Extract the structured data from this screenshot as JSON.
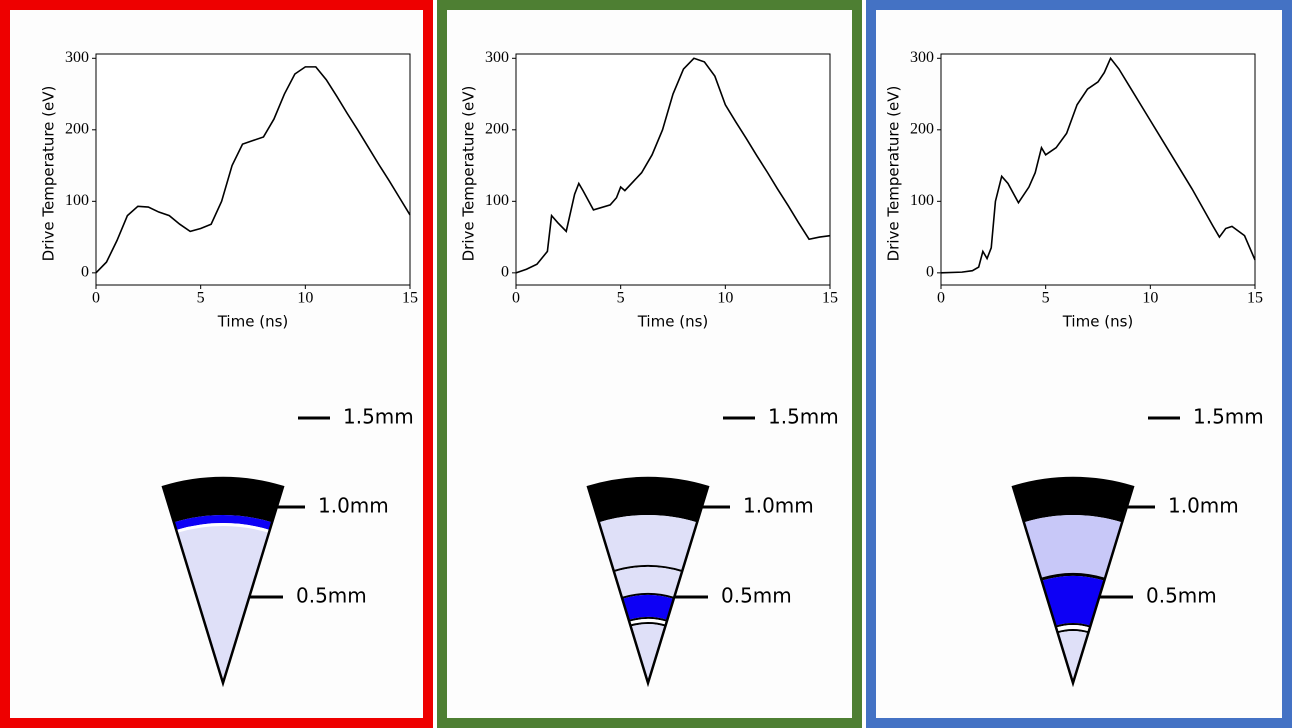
{
  "chart_data": [
    {
      "type": "line",
      "xlabel": "Time (ns)",
      "ylabel": "Drive Temperature (eV)",
      "color": "#000000",
      "x": [
        0,
        0.5,
        1,
        1.5,
        2,
        2.5,
        3,
        3.5,
        4,
        4.5,
        5,
        5.5,
        6,
        6.5,
        7,
        7.5,
        8,
        8.5,
        9,
        9.5,
        10,
        10.5,
        11,
        11.5,
        12,
        12.5,
        13,
        13.5,
        14,
        14.5,
        15
      ],
      "values": [
        0,
        15,
        45,
        80,
        93,
        92,
        85,
        80,
        68,
        58,
        62,
        68,
        100,
        150,
        180,
        185,
        190,
        215,
        250,
        278,
        288,
        288,
        270,
        247,
        223,
        200,
        176,
        152,
        129,
        105,
        81
      ],
      "xlim": [
        0,
        15
      ],
      "ylim": [
        -17,
        306
      ],
      "xticks": [
        0,
        5,
        10,
        15
      ],
      "yticks": [
        0,
        100,
        200,
        300
      ],
      "annotations": [
        "1.5mm",
        "1.0mm",
        "0.5mm"
      ]
    },
    {
      "type": "line",
      "xlabel": "Time (ns)",
      "ylabel": "Drive Temperature (eV)",
      "color": "#000000",
      "x": [
        0,
        0.5,
        1,
        1.5,
        1.7,
        2,
        2.4,
        2.8,
        3,
        3.2,
        3.7,
        4.5,
        4.8,
        5,
        5.2,
        6,
        6.5,
        7,
        7.5,
        8,
        8.5,
        9,
        9.5,
        10,
        10.5,
        11,
        11.5,
        12,
        12.5,
        13,
        13.5,
        14,
        14.5,
        15
      ],
      "values": [
        0,
        5,
        12,
        30,
        80,
        70,
        58,
        110,
        125,
        115,
        88,
        95,
        105,
        120,
        115,
        140,
        165,
        200,
        250,
        285,
        300,
        295,
        275,
        235,
        211,
        188,
        164,
        141,
        117,
        94,
        70,
        47,
        50,
        52
      ],
      "xlim": [
        0,
        15
      ],
      "ylim": [
        -17,
        306
      ],
      "xticks": [
        0,
        5,
        10,
        15
      ],
      "yticks": [
        0,
        100,
        200,
        300
      ],
      "annotations": [
        "1.5mm",
        "1.0mm",
        "0.5mm"
      ]
    },
    {
      "type": "line",
      "xlabel": "Time (ns)",
      "ylabel": "Drive Temperature (eV)",
      "color": "#000000",
      "x": [
        0,
        1,
        1.5,
        1.8,
        2,
        2.2,
        2.4,
        2.6,
        2.9,
        3.2,
        3.7,
        4.2,
        4.5,
        4.8,
        5,
        5.5,
        6,
        6.5,
        7,
        7.5,
        7.8,
        8.1,
        8.5,
        9,
        10,
        11,
        12,
        13,
        13.3,
        13.6,
        13.9,
        14.5,
        15
      ],
      "values": [
        0,
        1,
        3,
        8,
        30,
        20,
        35,
        100,
        135,
        125,
        98,
        120,
        140,
        175,
        165,
        175,
        195,
        235,
        257,
        267,
        280,
        300,
        285,
        261,
        213,
        165,
        117,
        65,
        50,
        62,
        65,
        52,
        18
      ],
      "xlim": [
        0,
        15
      ],
      "ylim": [
        -17,
        306
      ],
      "xticks": [
        0,
        5,
        10,
        15
      ],
      "yticks": [
        0,
        100,
        200,
        300
      ],
      "annotations": [
        "1.5mm",
        "1.0mm",
        "0.5mm"
      ]
    }
  ]
}
